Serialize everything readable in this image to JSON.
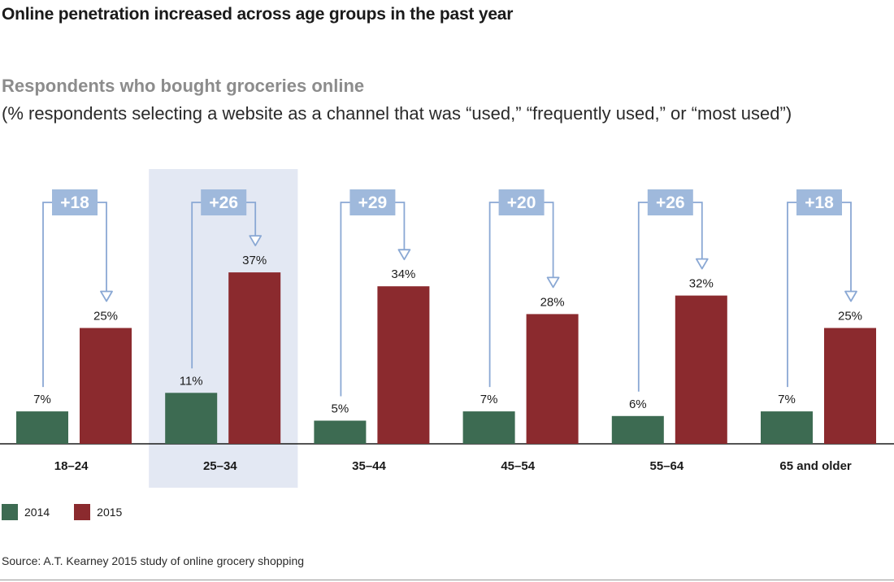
{
  "title": "Online penetration increased across age groups in the past year",
  "subtitle": "Respondents who bought groceries online",
  "description": "(% respondents selecting a website as a channel that was “used,” “frequently used,” or “most used”)",
  "source": "Source: A.T. Kearney 2015 study of online grocery shopping",
  "colors": {
    "series_2014": "#3d6b52",
    "series_2015": "#8b2a2e",
    "delta_box": "#9fb9dc",
    "arrow": "#8aa8d4",
    "highlight": "#e3e8f3",
    "axis": "#1a1a1a"
  },
  "chart_data": {
    "type": "bar",
    "categories": [
      "18–24",
      "25–34",
      "35–44",
      "45–54",
      "55–64",
      "65 and older"
    ],
    "series": [
      {
        "name": "2014",
        "values": [
          7,
          11,
          5,
          7,
          6,
          7
        ],
        "labels": [
          "7%",
          "11%",
          "5%",
          "7%",
          "6%",
          "7%"
        ]
      },
      {
        "name": "2015",
        "values": [
          25,
          37,
          34,
          28,
          32,
          25
        ],
        "labels": [
          "25%",
          "37%",
          "34%",
          "28%",
          "32%",
          "25%"
        ]
      }
    ],
    "deltas": [
      "+18",
      "+26",
      "+29",
      "+20",
      "+26",
      "+18"
    ],
    "highlighted_category": "25–34",
    "ylim": [
      0,
      37
    ],
    "legend": [
      "2014",
      "2015"
    ],
    "legend_position": "bottom-left",
    "grid": false
  }
}
